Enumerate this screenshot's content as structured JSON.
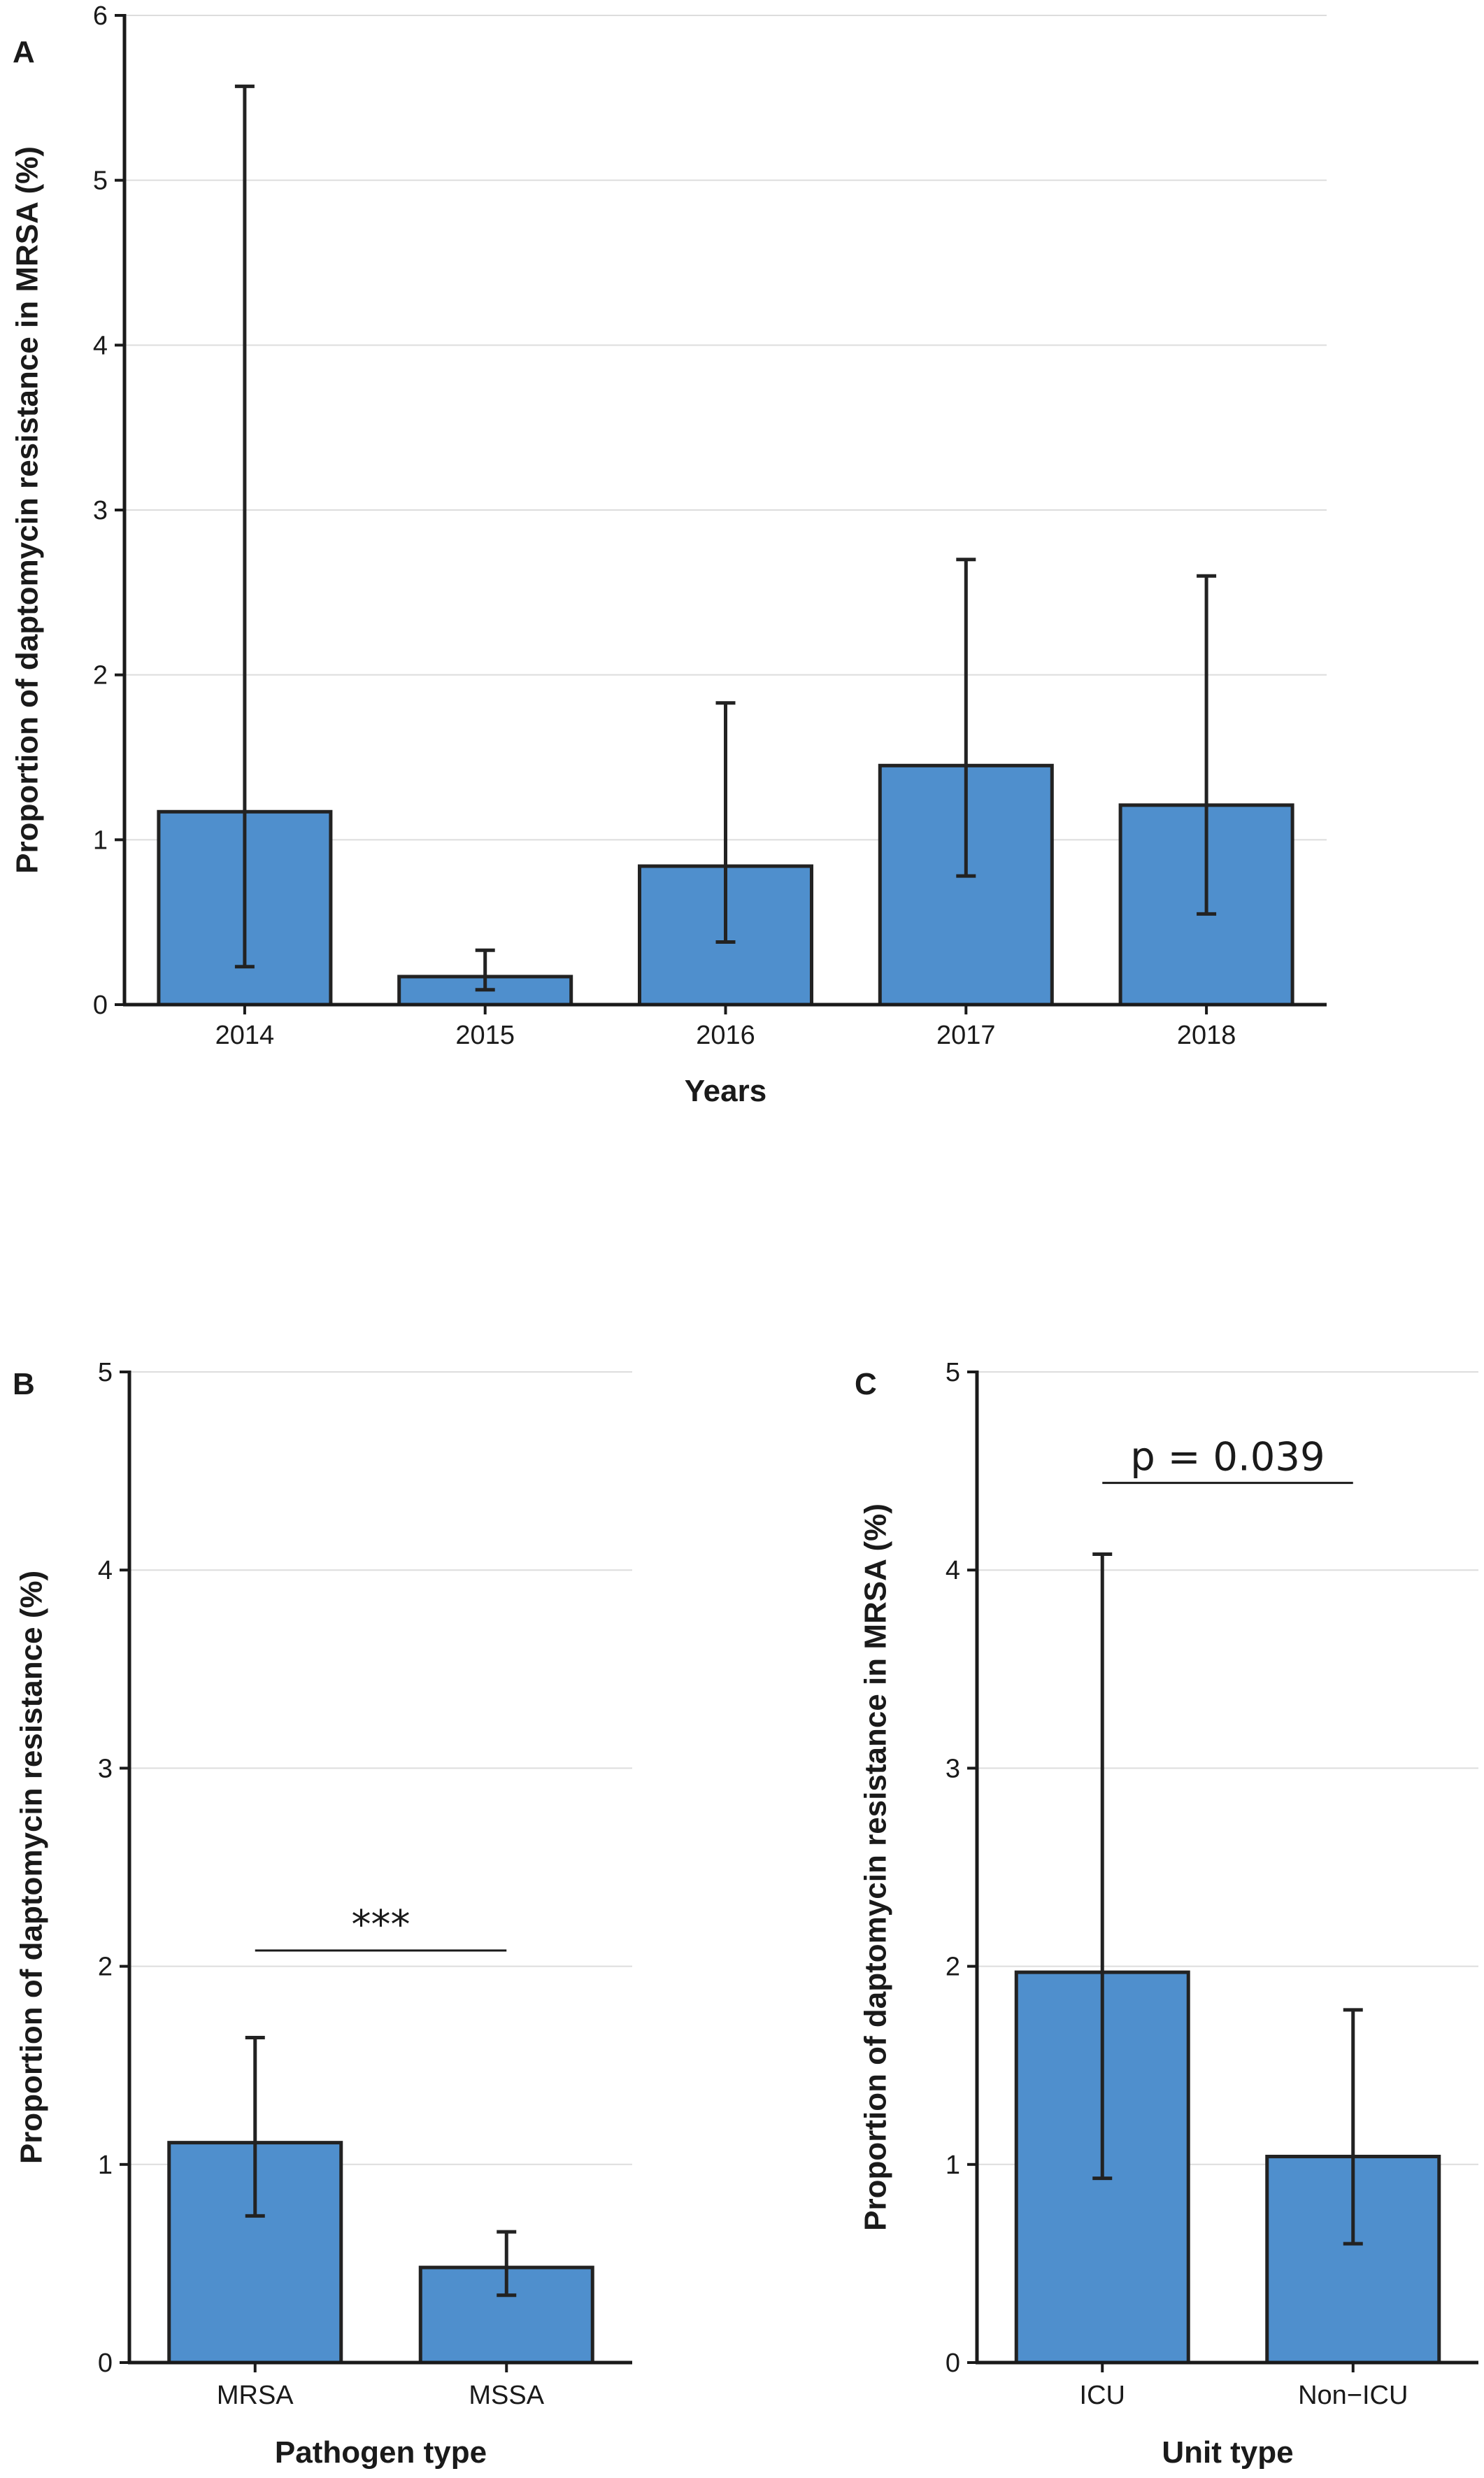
{
  "chart_data": [
    {
      "panel": "A",
      "type": "bar",
      "title": "",
      "xlabel": "Years",
      "ylabel": "Proportion of daptomycin resistance in MRSA (%)",
      "categories": [
        "2014",
        "2015",
        "2016",
        "2017",
        "2018"
      ],
      "values": [
        1.17,
        0.17,
        0.84,
        1.45,
        1.21
      ],
      "error_low": [
        0.23,
        0.09,
        0.38,
        0.78,
        0.55
      ],
      "error_high": [
        5.57,
        0.33,
        1.83,
        2.7,
        2.6
      ],
      "ylim": [
        0,
        6
      ],
      "yticks": [
        0,
        1,
        2,
        3,
        4,
        5,
        6
      ],
      "grid": true,
      "bar_color": "#4f8fcd",
      "annotation": null
    },
    {
      "panel": "B",
      "type": "bar",
      "title": "",
      "xlabel": "Pathogen type",
      "ylabel": "Proportion of daptomycin resistance (%)",
      "categories": [
        "MRSA",
        "MSSA"
      ],
      "values": [
        1.11,
        0.48
      ],
      "error_low": [
        0.74,
        0.34
      ],
      "error_high": [
        1.64,
        0.66
      ],
      "ylim": [
        0,
        5
      ],
      "yticks": [
        0,
        1,
        2,
        3,
        4,
        5
      ],
      "grid": true,
      "bar_color": "#4f8fcd",
      "annotation": {
        "text": "***",
        "y": 2.08
      }
    },
    {
      "panel": "C",
      "type": "bar",
      "title": "",
      "xlabel": "Unit type",
      "ylabel": "Proportion of daptomycin resistance in MRSA (%)",
      "categories": [
        "ICU",
        "Non−ICU"
      ],
      "values": [
        1.97,
        1.04
      ],
      "error_low": [
        0.93,
        0.6
      ],
      "error_high": [
        4.08,
        1.78
      ],
      "ylim": [
        0,
        5
      ],
      "yticks": [
        0,
        1,
        2,
        3,
        4,
        5
      ],
      "grid": true,
      "bar_color": "#4f8fcd",
      "annotation": {
        "text": "p = 0.039",
        "y": 4.44
      }
    }
  ]
}
